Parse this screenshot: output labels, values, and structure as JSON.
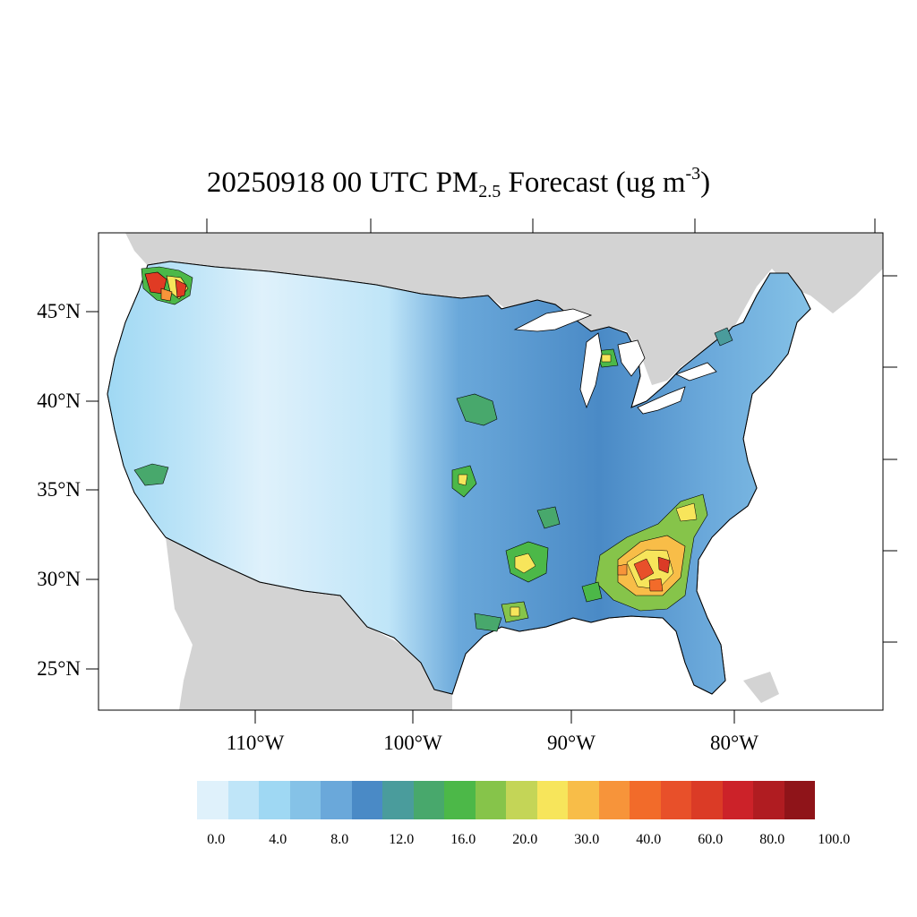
{
  "title": {
    "prefix": "20250918 00 UTC PM",
    "subscript": "2.5",
    "middle": " Forecast (ug m",
    "superscript": "-3",
    "suffix": ")"
  },
  "map": {
    "ocean_color": "#ffffff",
    "land_outside_color": "#d3d3d3",
    "border_color": "#000000",
    "lat_ticks": [
      {
        "value": 45,
        "label": "45°N"
      },
      {
        "value": 40,
        "label": "40°N"
      },
      {
        "value": 35,
        "label": "35°N"
      },
      {
        "value": 30,
        "label": "30°N"
      },
      {
        "value": 25,
        "label": "25°N"
      }
    ],
    "lon_ticks": [
      {
        "value": -110,
        "label": "110°W"
      },
      {
        "value": -100,
        "label": "100°W"
      },
      {
        "value": -90,
        "label": "90°W"
      },
      {
        "value": -80,
        "label": "80°W"
      }
    ],
    "hotspots": [
      {
        "name": "washington",
        "color": "#e03b24"
      },
      {
        "name": "southeast",
        "color": "#f8c14a"
      },
      {
        "name": "arkansas-louisiana",
        "color": "#f7e55b"
      },
      {
        "name": "oklahoma",
        "color": "#4cb848"
      },
      {
        "name": "kansas",
        "color": "#49a86d"
      },
      {
        "name": "california",
        "color": "#49a86d"
      }
    ]
  },
  "legend": {
    "colors": [
      "#dff1fb",
      "#bfe5f8",
      "#9fd8f3",
      "#85c2e7",
      "#6aa8da",
      "#4a8ac6",
      "#4a9c9c",
      "#48a86c",
      "#4cb848",
      "#86c44a",
      "#c4d557",
      "#f7e55b",
      "#f8bd48",
      "#f7943a",
      "#f26b2a",
      "#e8502a",
      "#db3b26",
      "#cc2229",
      "#b01c21",
      "#8f1419"
    ],
    "labels": [
      "0.0",
      "4.0",
      "8.0",
      "12.0",
      "16.0",
      "20.0",
      "30.0",
      "40.0",
      "60.0",
      "80.0",
      "100.0"
    ]
  }
}
